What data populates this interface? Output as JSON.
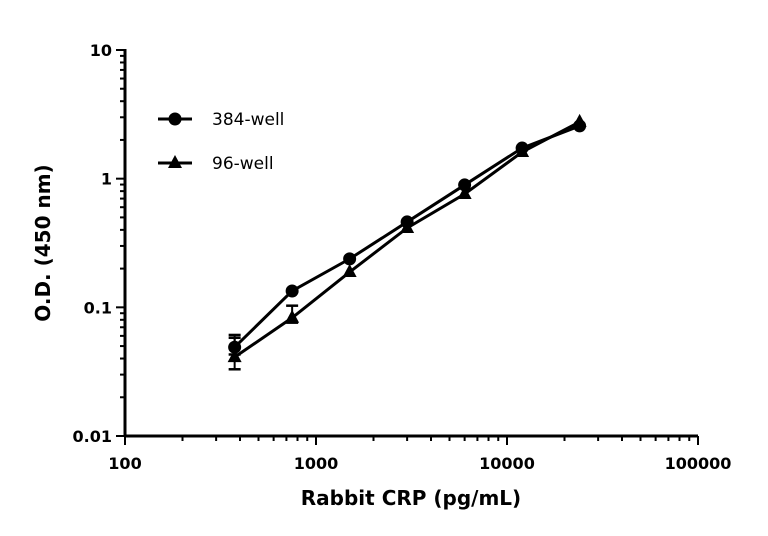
{
  "chart_data": {
    "type": "line",
    "title": "",
    "xlabel": "Rabbit CRP (pg/mL)",
    "ylabel": "O.D. (450 nm)",
    "xscale": "log",
    "yscale": "log",
    "xlim": [
      100,
      100000
    ],
    "ylim": [
      0.01,
      10
    ],
    "xticks": [
      100,
      1000,
      10000,
      100000
    ],
    "xtick_labels": [
      "100",
      "1000",
      "10000",
      "100000"
    ],
    "yticks": [
      0.01,
      0.1,
      1,
      10
    ],
    "ytick_labels": [
      "0.01",
      "0.1",
      "1",
      "10"
    ],
    "grid": false,
    "legend_position": "top-left",
    "x": [
      375,
      750,
      1500,
      3000,
      6000,
      12000,
      24000
    ],
    "series": [
      {
        "name": "384-well",
        "marker": "circle",
        "color": "#000000",
        "values": [
          0.049,
          0.134,
          0.238,
          0.461,
          0.894,
          1.73,
          2.57
        ],
        "error_low": [
          0.043,
          null,
          null,
          null,
          null,
          null,
          null
        ],
        "error_high": [
          0.058,
          null,
          null,
          null,
          null,
          null,
          null
        ]
      },
      {
        "name": "96-well",
        "marker": "triangle",
        "color": "#000000",
        "values": [
          0.041,
          0.083,
          0.188,
          0.414,
          0.76,
          1.61,
          2.76
        ],
        "error_low": [
          0.033,
          0.076,
          null,
          null,
          null,
          null,
          null
        ],
        "error_high": [
          0.061,
          0.103,
          null,
          null,
          null,
          null,
          null
        ]
      }
    ]
  }
}
